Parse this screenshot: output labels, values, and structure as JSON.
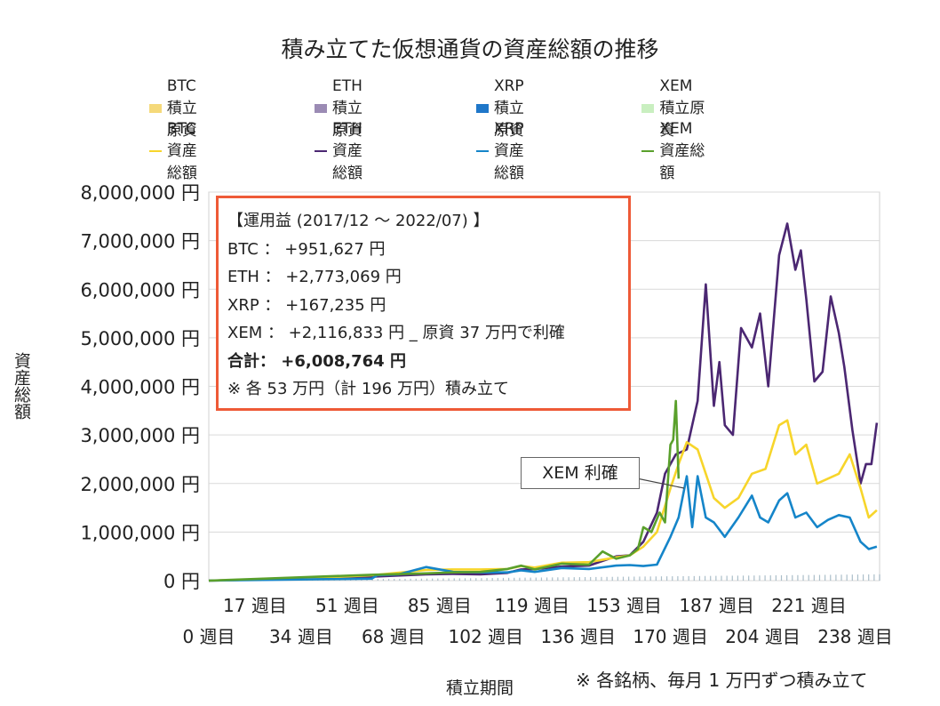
{
  "title": "積み立てた仮想通貨の資産総額の推移",
  "legend": {
    "row1": [
      {
        "label": "BTC  積立原資",
        "color": "#f5d97a",
        "kind": "box"
      },
      {
        "label": "ETH  積立原資",
        "color": "#9b8bb4",
        "kind": "box"
      },
      {
        "label": "XRP  積立原資",
        "color": "#1f77c9",
        "kind": "box"
      },
      {
        "label": "XEM  積立原資",
        "color": "#c9efc0",
        "kind": "box"
      }
    ],
    "row2": [
      {
        "label": "BTC  資産総額",
        "color": "#f7d52b",
        "kind": "line"
      },
      {
        "label": "ETH  資産総額",
        "color": "#4b2772",
        "kind": "line"
      },
      {
        "label": "XRP  資産総額",
        "color": "#1585c9",
        "kind": "line"
      },
      {
        "label": "XEM  資産総額",
        "color": "#5aa02c",
        "kind": "line"
      }
    ]
  },
  "info_box": {
    "header": "【運用益 (2017/12 ～ 2022/07) 】",
    "btc": "BTC ： +951,627 円",
    "eth": "ETH ： +2,773,069 円",
    "xrp": "XRP ： +167,235 円",
    "xem": "XEM ： +2,116,833 円 _ 原資 37 万円で利確",
    "total": "合計： +6,008,764 円",
    "note": "※ 各 53 万円（計 196 万円）積み立て"
  },
  "callout": "XEM 利確",
  "footnote": "※ 各銘柄、毎月 1 万円ずつ積み立て",
  "chart_data": {
    "type": "line",
    "title": "積み立てた仮想通貨の資産総額の推移",
    "xlabel": "積立期間",
    "ylabel": "資産総額",
    "xlim": [
      0,
      247
    ],
    "ylim": [
      0,
      8000000
    ],
    "y_ticks": [
      0,
      1000000,
      2000000,
      3000000,
      4000000,
      5000000,
      6000000,
      7000000,
      8000000
    ],
    "y_tick_labels": [
      "0 円",
      "1,000,000 円",
      "2,000,000 円",
      "3,000,000 円",
      "4,000,000 円",
      "5,000,000 円",
      "6,000,000 円",
      "7,000,000 円",
      "8,000,000 円"
    ],
    "x_ticks_upper": [
      17,
      51,
      85,
      119,
      153,
      187,
      221
    ],
    "x_tick_labels_upper": [
      "17 週目",
      "51 週目",
      "85 週目",
      "119 週目",
      "153 週目",
      "187 週目",
      "221 週目"
    ],
    "x_ticks_lower": [
      0,
      34,
      68,
      102,
      136,
      170,
      204,
      238
    ],
    "x_tick_labels_lower": [
      "0 週目",
      "34 週目",
      "68 週目",
      "102 週目",
      "136 週目",
      "170 週目",
      "204 週目",
      "238 週目"
    ],
    "grid": true,
    "legend_position": "top",
    "principal": {
      "x": [
        0,
        247
      ],
      "btc": [
        0,
        130000
      ],
      "eth": [
        0,
        130000
      ],
      "xrp": [
        0,
        130000
      ],
      "xem": [
        0,
        120000
      ],
      "xem_stop_week": 173
    },
    "series": [
      {
        "name": "BTC  資産総額",
        "x": [
          0,
          20,
          40,
          60,
          80,
          90,
          100,
          110,
          115,
          120,
          130,
          140,
          150,
          155,
          160,
          165,
          170,
          173,
          176,
          180,
          183,
          186,
          190,
          195,
          200,
          205,
          210,
          213,
          216,
          220,
          224,
          228,
          232,
          236,
          240,
          243,
          246
        ],
        "y": [
          0,
          25000,
          60000,
          110000,
          220000,
          230000,
          230000,
          240000,
          300000,
          270000,
          370000,
          380000,
          480000,
          520000,
          700000,
          1000000,
          1900000,
          2400000,
          2850000,
          2700000,
          2200000,
          1700000,
          1500000,
          1700000,
          2200000,
          2300000,
          3200000,
          3300000,
          2600000,
          2800000,
          2000000,
          2100000,
          2200000,
          2600000,
          1900000,
          1300000,
          1450000
        ]
      },
      {
        "name": "ETH  資産総額",
        "x": [
          0,
          20,
          40,
          60,
          80,
          90,
          100,
          110,
          115,
          120,
          130,
          140,
          150,
          155,
          160,
          165,
          168,
          172,
          176,
          180,
          183,
          186,
          188,
          190,
          193,
          196,
          200,
          203,
          206,
          210,
          213,
          216,
          218,
          220,
          223,
          226,
          229,
          232,
          234,
          237,
          240,
          242,
          244,
          246
        ],
        "y": [
          0,
          25000,
          40000,
          80000,
          130000,
          140000,
          130000,
          160000,
          230000,
          240000,
          290000,
          310000,
          500000,
          520000,
          800000,
          1400000,
          2200000,
          2600000,
          2700000,
          3700000,
          6100000,
          3600000,
          4500000,
          3200000,
          3000000,
          5200000,
          4800000,
          5500000,
          4000000,
          6700000,
          7350000,
          6400000,
          6800000,
          5800000,
          4100000,
          4300000,
          5850000,
          5100000,
          4400000,
          3100000,
          2000000,
          2400000,
          2400000,
          3250000
        ]
      },
      {
        "name": "XRP  資産総額",
        "x": [
          0,
          20,
          40,
          60,
          62,
          70,
          80,
          90,
          100,
          110,
          115,
          120,
          130,
          140,
          150,
          155,
          160,
          165,
          170,
          173,
          176,
          178,
          180,
          183,
          186,
          190,
          195,
          200,
          203,
          206,
          210,
          213,
          216,
          220,
          224,
          228,
          232,
          236,
          240,
          243,
          246
        ],
        "y": [
          0,
          15000,
          30000,
          40000,
          110000,
          130000,
          280000,
          180000,
          170000,
          170000,
          210000,
          180000,
          260000,
          240000,
          310000,
          320000,
          300000,
          330000,
          900000,
          1300000,
          2150000,
          1100000,
          2150000,
          1300000,
          1200000,
          900000,
          1300000,
          1750000,
          1300000,
          1200000,
          1650000,
          1800000,
          1300000,
          1400000,
          1100000,
          1250000,
          1350000,
          1300000,
          800000,
          650000,
          700000
        ]
      },
      {
        "name": "XEM  資産総額",
        "x": [
          0,
          20,
          40,
          60,
          80,
          90,
          100,
          110,
          115,
          120,
          130,
          140,
          145,
          150,
          155,
          158,
          160,
          163,
          166,
          168,
          170,
          171,
          172,
          173
        ],
        "y": [
          0,
          40000,
          80000,
          120000,
          150000,
          170000,
          180000,
          240000,
          310000,
          230000,
          350000,
          330000,
          600000,
          450000,
          520000,
          650000,
          1100000,
          1000000,
          1400000,
          1200000,
          2800000,
          2900000,
          3700000,
          2100000
        ]
      }
    ]
  }
}
